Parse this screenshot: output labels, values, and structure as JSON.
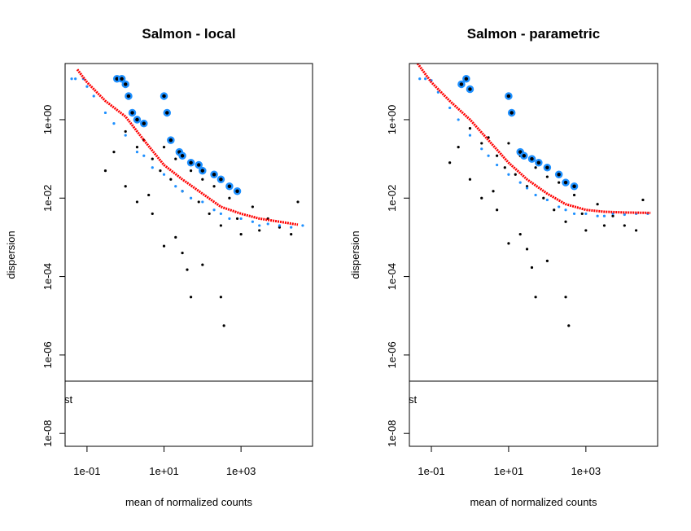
{
  "chart_data": [
    {
      "type": "scatter",
      "title": "Salmon - local",
      "xlabel": "mean of normalized counts",
      "ylabel": "dispersion",
      "xscale": "log",
      "yscale": "log",
      "xlim": [
        0.027,
        72000
      ],
      "ylim": [
        4.7e-09,
        27
      ],
      "xticks": [
        {
          "value": 0.1,
          "label": "1e-01"
        },
        {
          "value": 10,
          "label": "1e+01"
        },
        {
          "value": 1000,
          "label": "1e+03"
        }
      ],
      "yticks": [
        {
          "value": 1e-08,
          "label": "1e-08"
        },
        {
          "value": 1e-06,
          "label": "1e-06"
        },
        {
          "value": 0.0001,
          "label": "1e-04"
        },
        {
          "value": 0.01,
          "label": "1e-02"
        },
        {
          "value": 1,
          "label": "1e+00"
        }
      ],
      "legend_text": "st",
      "series": [
        {
          "color": "#000000",
          "marker": "dot",
          "x": [
            0.3,
            0.5,
            1,
            1,
            2,
            2,
            3,
            4,
            5,
            5,
            8,
            10,
            10,
            15,
            20,
            20,
            30,
            30,
            40,
            50,
            50,
            80,
            100,
            100,
            150,
            200,
            300,
            300,
            360,
            500,
            800,
            1000,
            2000,
            3000,
            5000,
            10000,
            20000,
            30000
          ],
          "y": [
            0.05,
            0.15,
            0.5,
            0.02,
            0.2,
            0.008,
            0.3,
            0.012,
            0.004,
            0.1,
            0.05,
            0.2,
            0.0006,
            0.03,
            0.001,
            0.1,
            0.015,
            0.0004,
            0.00015,
            3e-05,
            0.05,
            0.008,
            0.03,
            0.0002,
            0.004,
            0.02,
            0.002,
            3e-05,
            5.6e-06,
            0.01,
            0.003,
            0.0012,
            0.006,
            0.0015,
            0.003,
            0.0018,
            0.0012,
            0.008
          ]
        },
        {
          "color": "#1e90ff",
          "marker": "dot",
          "x": [
            0.04,
            0.05,
            0.08,
            0.1,
            0.15,
            0.3,
            0.5,
            1,
            2,
            3,
            5,
            10,
            20,
            30,
            50,
            100,
            200,
            300,
            500,
            1000,
            2000,
            3000,
            5000,
            10000,
            20000,
            40000
          ],
          "y": [
            11,
            11,
            11,
            7,
            4,
            1.5,
            0.8,
            0.4,
            0.15,
            0.12,
            0.06,
            0.04,
            0.02,
            0.015,
            0.01,
            0.008,
            0.005,
            0.004,
            0.003,
            0.003,
            0.0025,
            0.002,
            0.0022,
            0.002,
            0.0018,
            0.002
          ]
        },
        {
          "color": "#1e90ff",
          "marker": "ring",
          "x": [
            0.6,
            0.8,
            1,
            1.2,
            1.5,
            2,
            3,
            10,
            12,
            15,
            25,
            30,
            50,
            80,
            100,
            200,
            300,
            500,
            800
          ],
          "y": [
            11,
            11,
            8,
            4,
            1.5,
            1,
            0.8,
            4,
            1.5,
            0.3,
            0.15,
            0.12,
            0.08,
            0.07,
            0.05,
            0.04,
            0.03,
            0.02,
            0.015
          ]
        },
        {
          "color": "#ff0000",
          "marker": "line",
          "x": [
            0.056,
            0.1,
            0.3,
            1,
            3,
            10,
            30,
            100,
            300,
            1000,
            3000,
            10000,
            30000
          ],
          "y": [
            19,
            9,
            3,
            1.2,
            0.3,
            0.07,
            0.03,
            0.013,
            0.006,
            0.004,
            0.003,
            0.0025,
            0.0021
          ]
        }
      ]
    },
    {
      "type": "scatter",
      "title": "Salmon - parametric",
      "xlabel": "mean of normalized counts",
      "ylabel": "dispersion",
      "xscale": "log",
      "yscale": "log",
      "xlim": [
        0.027,
        72000
      ],
      "ylim": [
        4.7e-09,
        27
      ],
      "xticks": [
        {
          "value": 0.1,
          "label": "1e-01"
        },
        {
          "value": 10,
          "label": "1e+01"
        },
        {
          "value": 1000,
          "label": "1e+03"
        }
      ],
      "yticks": [
        {
          "value": 1e-08,
          "label": "1e-08"
        },
        {
          "value": 1e-06,
          "label": "1e-06"
        },
        {
          "value": 0.0001,
          "label": "1e-04"
        },
        {
          "value": 0.01,
          "label": "1e-02"
        },
        {
          "value": 1,
          "label": "1e+00"
        }
      ],
      "legend_text": "st",
      "series": [
        {
          "color": "#000000",
          "marker": "dot",
          "x": [
            0.3,
            0.5,
            1,
            1,
            2,
            2,
            3,
            4,
            5,
            5,
            8,
            10,
            10,
            15,
            20,
            20,
            30,
            30,
            40,
            50,
            50,
            80,
            100,
            100,
            150,
            200,
            300,
            300,
            360,
            500,
            800,
            1000,
            2000,
            3000,
            5000,
            10000,
            20000,
            30000
          ],
          "y": [
            0.08,
            0.2,
            0.6,
            0.03,
            0.25,
            0.01,
            0.35,
            0.015,
            0.005,
            0.12,
            0.06,
            0.25,
            0.0007,
            0.04,
            0.0012,
            0.12,
            0.02,
            0.0005,
            0.00017,
            3e-05,
            0.06,
            0.01,
            0.035,
            0.00025,
            0.005,
            0.025,
            0.0025,
            3e-05,
            5.6e-06,
            0.012,
            0.004,
            0.0015,
            0.007,
            0.002,
            0.0035,
            0.002,
            0.0015,
            0.009
          ]
        },
        {
          "color": "#1e90ff",
          "marker": "dot",
          "x": [
            0.05,
            0.07,
            0.1,
            0.15,
            0.3,
            0.5,
            1,
            2,
            3,
            5,
            10,
            20,
            30,
            50,
            100,
            200,
            300,
            500,
            1000,
            2000,
            3000,
            5000,
            10000,
            20000,
            40000
          ],
          "y": [
            11,
            11,
            10,
            5,
            2,
            1,
            0.4,
            0.18,
            0.12,
            0.07,
            0.04,
            0.025,
            0.018,
            0.012,
            0.009,
            0.006,
            0.005,
            0.004,
            0.004,
            0.0035,
            0.0035,
            0.004,
            0.0038,
            0.004,
            0.004
          ]
        },
        {
          "color": "#1e90ff",
          "marker": "ring",
          "x": [
            0.6,
            0.8,
            1,
            10,
            12,
            20,
            25,
            40,
            60,
            100,
            200,
            300,
            500
          ],
          "y": [
            8,
            11,
            6,
            4,
            1.5,
            0.15,
            0.12,
            0.1,
            0.08,
            0.06,
            0.04,
            0.025,
            0.02
          ]
        },
        {
          "color": "#ff0000",
          "marker": "line",
          "x": [
            0.044,
            0.1,
            0.3,
            1,
            3,
            10,
            30,
            100,
            300,
            1000,
            3000,
            10000,
            47000
          ],
          "y": [
            27,
            9,
            3,
            1,
            0.3,
            0.08,
            0.03,
            0.013,
            0.007,
            0.005,
            0.0045,
            0.0043,
            0.0042
          ]
        }
      ]
    }
  ]
}
